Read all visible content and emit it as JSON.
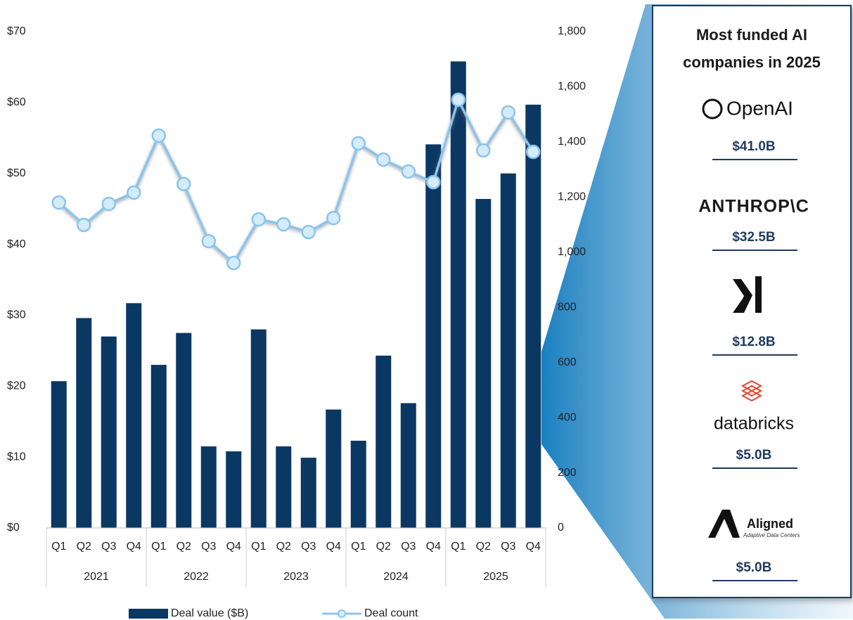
{
  "chart_data": {
    "type": "bar_line",
    "categories": [
      "Q1",
      "Q2",
      "Q3",
      "Q4",
      "Q1",
      "Q2",
      "Q3",
      "Q4",
      "Q1",
      "Q2",
      "Q3",
      "Q4",
      "Q1",
      "Q2",
      "Q3",
      "Q4",
      "Q1",
      "Q2",
      "Q3",
      "Q4"
    ],
    "years": [
      "2021",
      "2022",
      "2023",
      "2024",
      "2025"
    ],
    "series": [
      {
        "name": "Deal value ($B)",
        "color": "#0b3863",
        "type": "bar",
        "axis": "y",
        "values": [
          20.7,
          29.6,
          27.0,
          31.7,
          23.0,
          27.5,
          11.5,
          10.8,
          28.0,
          11.5,
          9.9,
          16.7,
          12.3,
          24.3,
          17.6,
          54.1,
          65.8,
          46.4,
          50.0,
          59.7
        ]
      },
      {
        "name": "Deal count",
        "color": "#8cc4ec",
        "type": "line",
        "axis": "y2",
        "values": [
          1180,
          1099,
          1175,
          1216,
          1423,
          1247,
          1040,
          961,
          1119,
          1101,
          1073,
          1124,
          1395,
          1336,
          1293,
          1254,
          1553,
          1369,
          1507,
          1364
        ]
      }
    ],
    "ylim": [
      0,
      70
    ],
    "yticks": [
      {
        "value": 0,
        "label": "$0"
      },
      {
        "value": 10,
        "label": "$10"
      },
      {
        "value": 20,
        "label": "$20"
      },
      {
        "value": 30,
        "label": "$30"
      },
      {
        "value": 40,
        "label": "$40"
      },
      {
        "value": 50,
        "label": "$50"
      },
      {
        "value": 60,
        "label": "$60"
      },
      {
        "value": 70,
        "label": "$70"
      }
    ],
    "y2lim": [
      0,
      1800
    ],
    "y2ticks": [
      0,
      200,
      400,
      600,
      800,
      {
        "value": 1000,
        "label": "1,000"
      },
      {
        "value": 1200,
        "label": "1,200"
      },
      {
        "value": 1400,
        "label": "1,400"
      },
      {
        "value": 1600,
        "label": "1,600"
      },
      {
        "value": 1800,
        "label": "1,800"
      }
    ],
    "grid": false,
    "legend": "bottom"
  },
  "panel": {
    "title_lines": [
      "Most funded AI",
      "companies in 2025"
    ],
    "companies": [
      {
        "logo": "OpenAI",
        "amount": "$41.0B"
      },
      {
        "logo": "ANTHROP\\C",
        "amount": "$32.5B"
      },
      {
        "amount": "$12.8B"
      },
      {
        "logo": "databricks",
        "amount": "$5.0B"
      },
      {
        "logo": "Aligned",
        "tagline": "Adaptive Data Centers",
        "amount": "$5.0B"
      }
    ]
  }
}
